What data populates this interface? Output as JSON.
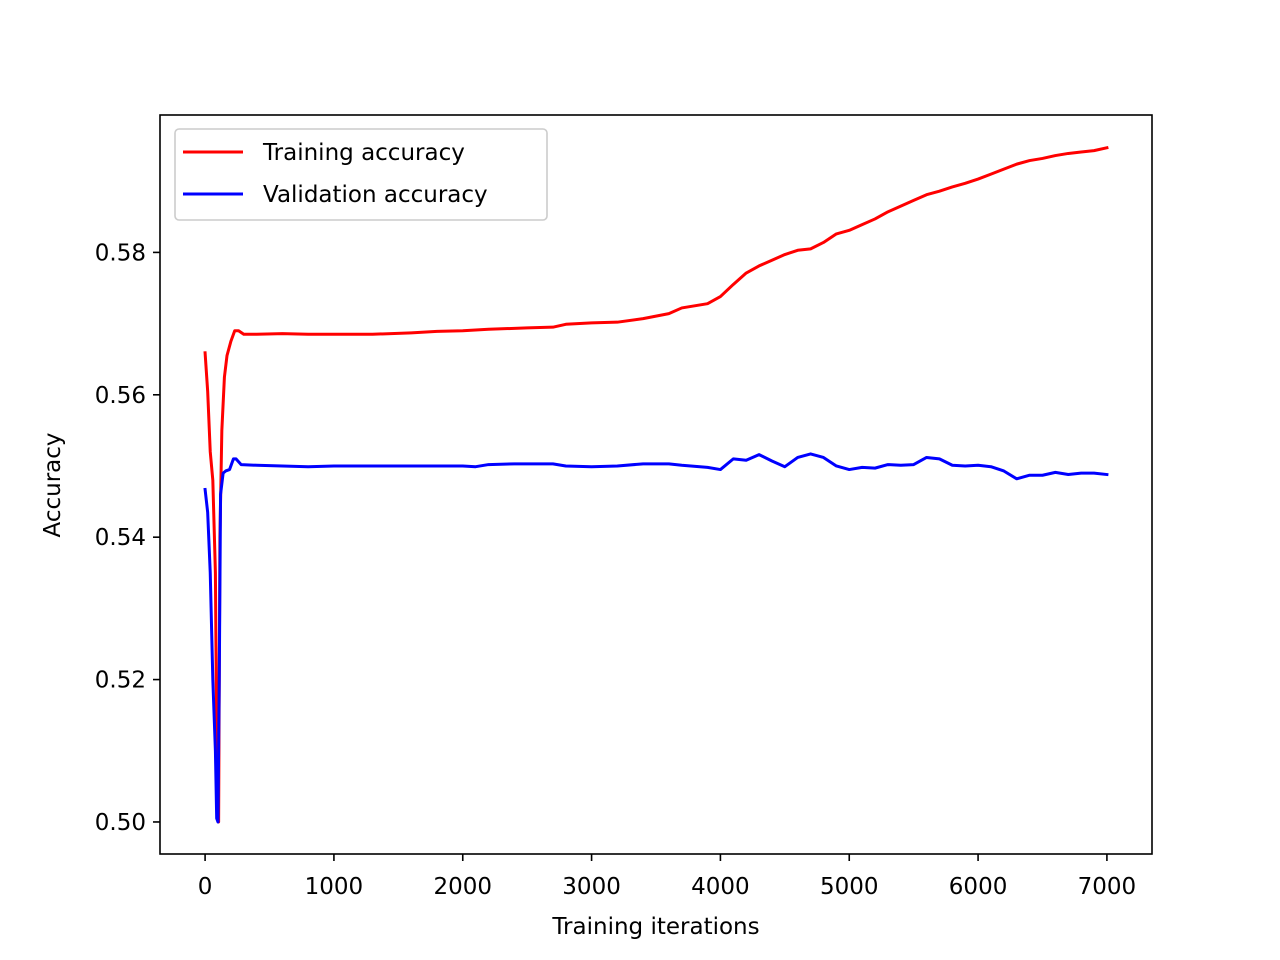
{
  "chart_data": {
    "type": "line",
    "title": "",
    "xlabel": "Training iterations",
    "ylabel": "Accuracy",
    "xlim": [
      -350,
      7350
    ],
    "ylim": [
      0.4955,
      0.5993
    ],
    "xticks": [
      0,
      1000,
      2000,
      3000,
      4000,
      5000,
      6000,
      7000
    ],
    "xtick_labels": [
      "0",
      "1000",
      "2000",
      "3000",
      "4000",
      "5000",
      "6000",
      "7000"
    ],
    "yticks": [
      0.5,
      0.52,
      0.54,
      0.56,
      0.58
    ],
    "ytick_labels": [
      "0.50",
      "0.52",
      "0.54",
      "0.56",
      "0.58"
    ],
    "grid": false,
    "legend_position": "top-left",
    "series": [
      {
        "name": "Training accuracy",
        "color": "#ff0000",
        "points": [
          [
            0,
            0.5659
          ],
          [
            20,
            0.5605
          ],
          [
            40,
            0.552
          ],
          [
            60,
            0.548
          ],
          [
            80,
            0.535
          ],
          [
            95,
            0.5005
          ],
          [
            105,
            0.5
          ],
          [
            115,
            0.54
          ],
          [
            130,
            0.555
          ],
          [
            150,
            0.5625
          ],
          [
            170,
            0.5655
          ],
          [
            200,
            0.5675
          ],
          [
            230,
            0.569
          ],
          [
            260,
            0.569
          ],
          [
            300,
            0.5685
          ],
          [
            400,
            0.5685
          ],
          [
            600,
            0.5686
          ],
          [
            800,
            0.5685
          ],
          [
            1000,
            0.5685
          ],
          [
            1300,
            0.5685
          ],
          [
            1600,
            0.5687
          ],
          [
            1800,
            0.5689
          ],
          [
            2000,
            0.569
          ],
          [
            2200,
            0.5692
          ],
          [
            2500,
            0.5694
          ],
          [
            2700,
            0.5695
          ],
          [
            2800,
            0.5699
          ],
          [
            3000,
            0.5701
          ],
          [
            3200,
            0.5702
          ],
          [
            3400,
            0.5707
          ],
          [
            3600,
            0.5714
          ],
          [
            3700,
            0.5722
          ],
          [
            3900,
            0.5728
          ],
          [
            4000,
            0.5738
          ],
          [
            4100,
            0.5755
          ],
          [
            4200,
            0.5771
          ],
          [
            4300,
            0.5781
          ],
          [
            4400,
            0.5789
          ],
          [
            4500,
            0.5797
          ],
          [
            4600,
            0.5803
          ],
          [
            4700,
            0.5805
          ],
          [
            4800,
            0.5814
          ],
          [
            4900,
            0.5826
          ],
          [
            5000,
            0.5831
          ],
          [
            5100,
            0.5839
          ],
          [
            5200,
            0.5847
          ],
          [
            5300,
            0.5857
          ],
          [
            5400,
            0.5865
          ],
          [
            5500,
            0.5873
          ],
          [
            5600,
            0.5881
          ],
          [
            5700,
            0.5886
          ],
          [
            5800,
            0.5892
          ],
          [
            5900,
            0.5897
          ],
          [
            6000,
            0.5903
          ],
          [
            6100,
            0.591
          ],
          [
            6200,
            0.5917
          ],
          [
            6300,
            0.5924
          ],
          [
            6400,
            0.5929
          ],
          [
            6500,
            0.5932
          ],
          [
            6600,
            0.5936
          ],
          [
            6700,
            0.5939
          ],
          [
            6800,
            0.5941
          ],
          [
            6900,
            0.5943
          ],
          [
            7000,
            0.5947
          ]
        ]
      },
      {
        "name": "Validation accuracy",
        "color": "#0000ff",
        "points": [
          [
            0,
            0.5467
          ],
          [
            20,
            0.5435
          ],
          [
            40,
            0.535
          ],
          [
            60,
            0.52
          ],
          [
            80,
            0.51
          ],
          [
            90,
            0.5005
          ],
          [
            100,
            0.5
          ],
          [
            110,
            0.52
          ],
          [
            120,
            0.546
          ],
          [
            140,
            0.549
          ],
          [
            160,
            0.5493
          ],
          [
            190,
            0.5495
          ],
          [
            220,
            0.551
          ],
          [
            240,
            0.551
          ],
          [
            280,
            0.5502
          ],
          [
            400,
            0.5501
          ],
          [
            600,
            0.55
          ],
          [
            800,
            0.5499
          ],
          [
            1000,
            0.55
          ],
          [
            1500,
            0.55
          ],
          [
            2000,
            0.55
          ],
          [
            2100,
            0.5499
          ],
          [
            2200,
            0.5502
          ],
          [
            2400,
            0.5503
          ],
          [
            2700,
            0.5503
          ],
          [
            2800,
            0.55
          ],
          [
            3000,
            0.5499
          ],
          [
            3200,
            0.55
          ],
          [
            3400,
            0.5503
          ],
          [
            3600,
            0.5503
          ],
          [
            3700,
            0.5501
          ],
          [
            3900,
            0.5498
          ],
          [
            4000,
            0.5495
          ],
          [
            4100,
            0.551
          ],
          [
            4200,
            0.5508
          ],
          [
            4300,
            0.5516
          ],
          [
            4400,
            0.5507
          ],
          [
            4500,
            0.5499
          ],
          [
            4600,
            0.5512
          ],
          [
            4700,
            0.5517
          ],
          [
            4800,
            0.5512
          ],
          [
            4900,
            0.55
          ],
          [
            5000,
            0.5495
          ],
          [
            5100,
            0.5498
          ],
          [
            5200,
            0.5497
          ],
          [
            5300,
            0.5502
          ],
          [
            5400,
            0.5501
          ],
          [
            5500,
            0.5502
          ],
          [
            5600,
            0.5512
          ],
          [
            5700,
            0.551
          ],
          [
            5800,
            0.5501
          ],
          [
            5900,
            0.55
          ],
          [
            6000,
            0.5501
          ],
          [
            6100,
            0.5499
          ],
          [
            6200,
            0.5493
          ],
          [
            6300,
            0.5482
          ],
          [
            6400,
            0.5487
          ],
          [
            6500,
            0.5487
          ],
          [
            6600,
            0.5491
          ],
          [
            6700,
            0.5488
          ],
          [
            6800,
            0.549
          ],
          [
            6900,
            0.549
          ],
          [
            7000,
            0.5488
          ]
        ]
      }
    ]
  }
}
